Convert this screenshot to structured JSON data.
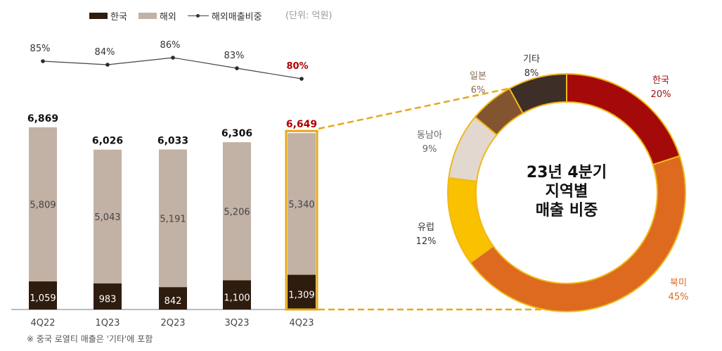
{
  "legend": {
    "korea": "한국",
    "overseas": "해외",
    "ratio": "해외매출비중"
  },
  "unit_note": "(단위: 억원)",
  "footnote": "※ 중국 로열티 매출은 '기타'에 포함",
  "colors": {
    "korea_bar": "#2e1c0f",
    "overseas_bar": "#c2b1a5",
    "highlight": "#e6a817",
    "ratio_highlight": "#b00000"
  },
  "chart_data": [
    {
      "type": "bar",
      "stacked": true,
      "categories": [
        "4Q22",
        "1Q23",
        "2Q23",
        "3Q23",
        "4Q23"
      ],
      "series": [
        {
          "name": "한국",
          "values": [
            1059,
            983,
            842,
            1100,
            1309
          ],
          "labels": [
            "1,059",
            "983",
            "842",
            "1,100",
            "1,309"
          ]
        },
        {
          "name": "해외",
          "values": [
            5809,
            5043,
            5191,
            5206,
            5340
          ],
          "labels": [
            "5,809",
            "5,043",
            "5,191",
            "5,206",
            "5,340"
          ]
        }
      ],
      "totals": [
        6869,
        6026,
        6033,
        6306,
        6649
      ],
      "total_labels": [
        "6,869",
        "6,026",
        "6,033",
        "6,306",
        "6,649"
      ],
      "ratio_series": {
        "name": "해외매출비중",
        "values": [
          85,
          84,
          86,
          83,
          80
        ],
        "labels": [
          "85%",
          "84%",
          "86%",
          "83%",
          "80%"
        ]
      },
      "highlighted_category": "4Q23",
      "ylim": [
        0,
        7000
      ],
      "grid": false
    },
    {
      "type": "pie",
      "donut": true,
      "center_title": [
        "23년 4분기",
        "지역별",
        "매출 비중"
      ],
      "slices": [
        {
          "label": "한국",
          "value": 20,
          "value_label": "20%",
          "color": "#a50a0a",
          "text_color": "#a50a0a"
        },
        {
          "label": "북미",
          "value": 45,
          "value_label": "45%",
          "color": "#dd6a1f",
          "text_color": "#dd6a1f"
        },
        {
          "label": "유럽",
          "value": 12,
          "value_label": "12%",
          "color": "#f9c100",
          "text_color": "#333333"
        },
        {
          "label": "동남아",
          "value": 9,
          "value_label": "9%",
          "color": "#e2d8d0",
          "text_color": "#666666"
        },
        {
          "label": "일본",
          "value": 6,
          "value_label": "6%",
          "color": "#835430",
          "text_color": "#8a6a50"
        },
        {
          "label": "기타",
          "value": 8,
          "value_label": "8%",
          "color": "#3e2e28",
          "text_color": "#333333"
        }
      ]
    }
  ]
}
